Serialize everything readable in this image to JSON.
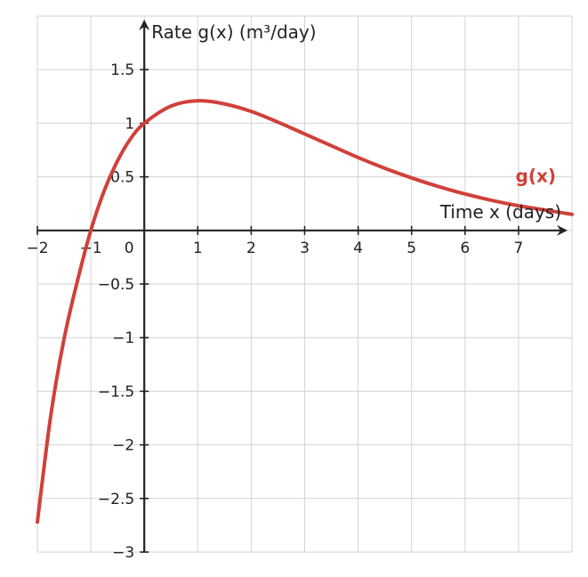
{
  "chart_data": {
    "type": "line",
    "xlabel": "Time x (days)",
    "ylabel": "Rate g(x) (m³/day)",
    "xlim": [
      -2,
      8
    ],
    "ylim": [
      -3,
      2
    ],
    "grid": true,
    "x_ticks": [
      -2,
      -1,
      0,
      1,
      2,
      3,
      4,
      5,
      6,
      7
    ],
    "x_tick_labels": [
      "−2",
      "−1",
      "0",
      "1",
      "2",
      "3",
      "4",
      "5",
      "6",
      "7"
    ],
    "y_ticks": [
      -3,
      -2.5,
      -2,
      -1.5,
      -1,
      -0.5,
      0.5,
      1,
      1.5
    ],
    "y_tick_labels": [
      "−3",
      "−2.5",
      "−2",
      "−1.5",
      "−1",
      "−0.5",
      "0.5",
      "1",
      "1.5"
    ],
    "series": [
      {
        "name": "g(x)",
        "color": "#d1403a",
        "x": [
          -2,
          -1.75,
          -1.5,
          -1.25,
          -1,
          -0.75,
          -0.5,
          -0.25,
          0,
          0.5,
          1,
          1.5,
          2,
          2.5,
          3,
          3.5,
          4,
          4.5,
          5,
          5.5,
          6,
          6.5,
          7,
          7.5,
          8
        ],
        "y": [
          -2.72,
          -1.73,
          -1.01,
          -0.47,
          0,
          0.37,
          0.65,
          0.86,
          1.0,
          1.16,
          1.21,
          1.18,
          1.11,
          1.01,
          0.9,
          0.79,
          0.68,
          0.58,
          0.49,
          0.41,
          0.34,
          0.28,
          0.23,
          0.19,
          0.15
        ]
      }
    ]
  }
}
